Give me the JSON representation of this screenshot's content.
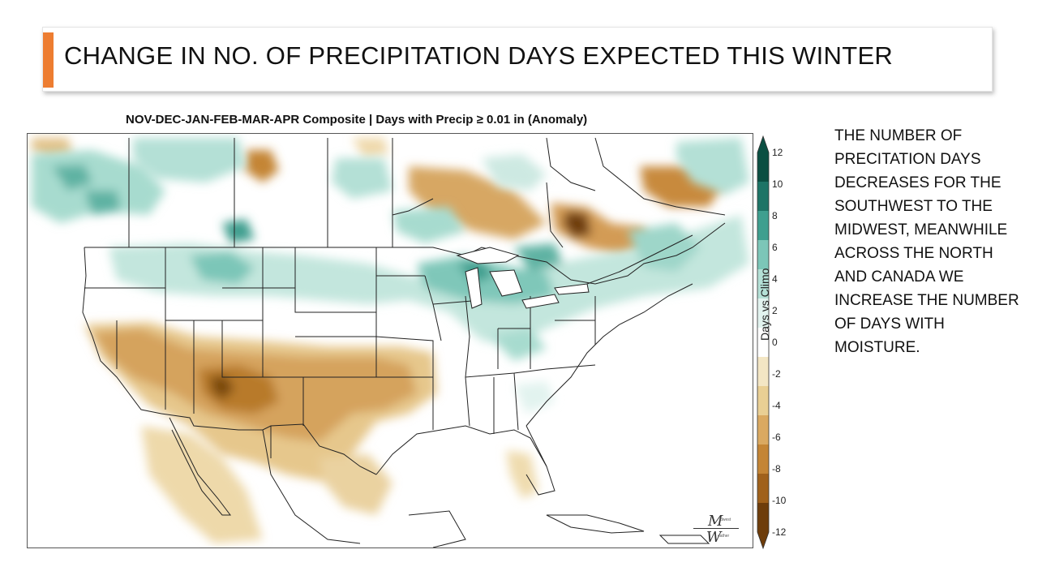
{
  "slide": {
    "title": "CHANGE IN NO. OF PRECIPITATION DAYS EXPECTED THIS WINTER",
    "accent_color": "#ed7d31"
  },
  "map": {
    "title": "NOV-DEC-JAN-FEB-MAR-APR Composite | Days with Precip ≥ 0.01 in (Anomaly)",
    "colorbar": {
      "label": "Days vs Climo",
      "ticks": [
        "12",
        "10",
        "8",
        "6",
        "4",
        "2",
        "0",
        "-2",
        "-4",
        "-6",
        "-8",
        "-10",
        "-12"
      ],
      "wet_colors": [
        "#0b4f42",
        "#1d7466",
        "#3f9f8f",
        "#7cc6b8",
        "#b4e0d6",
        "#e2f3ef"
      ],
      "dry_colors": [
        "#f3e6c4",
        "#e9cf94",
        "#daa961",
        "#c48535",
        "#a0611b",
        "#6e3d0b"
      ]
    },
    "logo": {
      "line1": "M",
      "line1_small": "idwest",
      "line2": "W",
      "line2_small": "eather"
    }
  },
  "side_text": {
    "lines": [
      "THE NUMBER OF",
      "PRECITATION DAYS",
      "DECREASES FOR THE",
      "SOUTHWEST TO THE",
      "MIDWEST, MEANWHILE",
      "ACROSS THE NORTH",
      "AND CANADA WE",
      "INCREASE THE NUMBER",
      "OF DAYS WITH",
      "MOISTURE."
    ]
  }
}
